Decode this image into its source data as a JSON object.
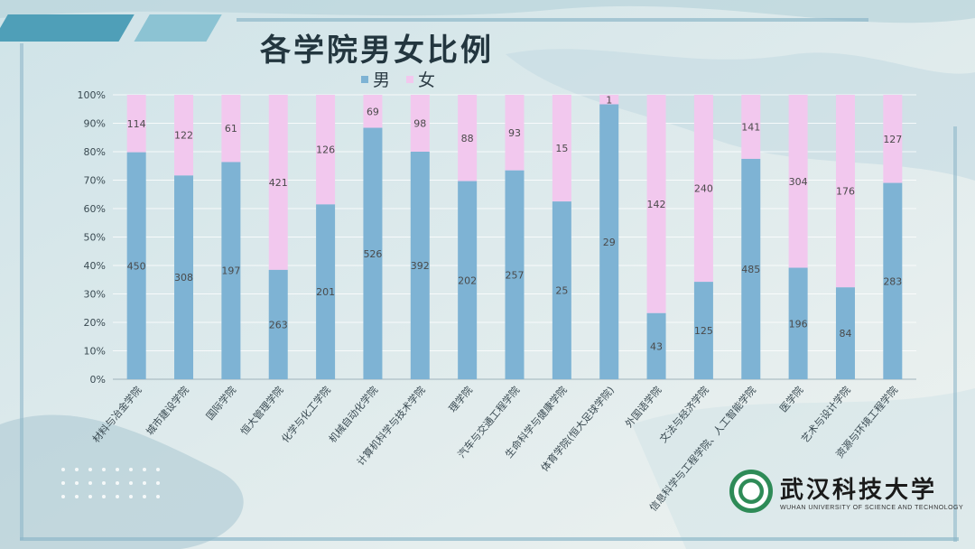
{
  "title": "各学院男女比例",
  "legend": [
    {
      "label": "男",
      "color": "#7eb3d4"
    },
    {
      "label": "女",
      "color": "#f2c8ee"
    }
  ],
  "logo": {
    "name_cn": "武汉科技大学",
    "name_en": "WUHAN UNIVERSITY OF SCIENCE AND TECHNOLOGY"
  },
  "colors": {
    "male": "#7eb3d4",
    "female": "#f2c8ee",
    "accent": "#4f9fb8"
  },
  "chart_data": {
    "type": "bar",
    "stacked": "percent",
    "title": "各学院男女比例",
    "categories": [
      "材料与冶金学院",
      "城市建设学院",
      "国际学院",
      "恒大管理学院",
      "化学与化工学院",
      "机械自动化学院",
      "计算机科学与技术学院",
      "理学院",
      "汽车与交通工程学院",
      "生命科学与健康学院",
      "体育学院(恒大足球学院)",
      "外国语学院",
      "文法与经济学院",
      "信息科学与工程学院、人工智能学院",
      "医学院",
      "艺术与设计学院",
      "资源与环境工程学院"
    ],
    "series": [
      {
        "name": "男",
        "values": [
          450,
          308,
          197,
          263,
          201,
          526,
          392,
          202,
          257,
          25,
          29,
          43,
          125,
          485,
          196,
          84,
          283
        ]
      },
      {
        "name": "女",
        "values": [
          114,
          122,
          61,
          421,
          126,
          69,
          98,
          88,
          93,
          15,
          1,
          142,
          240,
          141,
          304,
          176,
          127
        ]
      }
    ],
    "yticks": [
      "0%",
      "10%",
      "20%",
      "30%",
      "40%",
      "50%",
      "60%",
      "70%",
      "80%",
      "90%",
      "100%"
    ],
    "ylim": [
      0,
      100
    ],
    "grid": true,
    "legend_position": "top"
  }
}
